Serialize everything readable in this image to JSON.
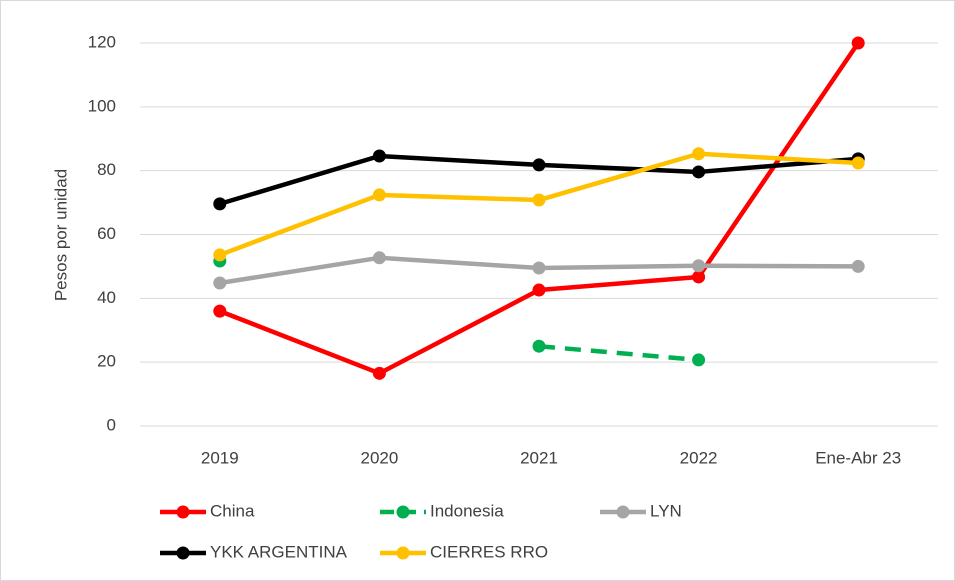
{
  "chart_data": {
    "type": "line",
    "y_label": "Pesos por unidad",
    "categories": [
      "2019",
      "2020",
      "2021",
      "2022",
      "Ene-Abr 23"
    ],
    "series": [
      {
        "name": "China",
        "color": "#ff0000",
        "values": [
          36,
          16.5,
          42.6,
          46.7,
          120
        ]
      },
      {
        "name": "Indonesia",
        "color": "#00b050",
        "style": "dashed",
        "values": [
          51.7,
          null,
          25,
          20.7,
          null
        ]
      },
      {
        "name": "LYN",
        "color": "#a5a5a5",
        "values": [
          44.8,
          52.7,
          49.5,
          50.2,
          50
        ]
      },
      {
        "name": "YKK ARGENTINA",
        "color": "#000000",
        "values": [
          69.6,
          84.6,
          81.8,
          79.6,
          83.7
        ]
      },
      {
        "name": "CIERRES RRO",
        "color": "#ffc000",
        "values": [
          53.6,
          72.4,
          70.8,
          85.3,
          82.4
        ]
      }
    ],
    "ylim": [
      0,
      120
    ],
    "yticks": [
      0,
      20,
      40,
      60,
      80,
      100,
      120
    ],
    "grid": true
  }
}
